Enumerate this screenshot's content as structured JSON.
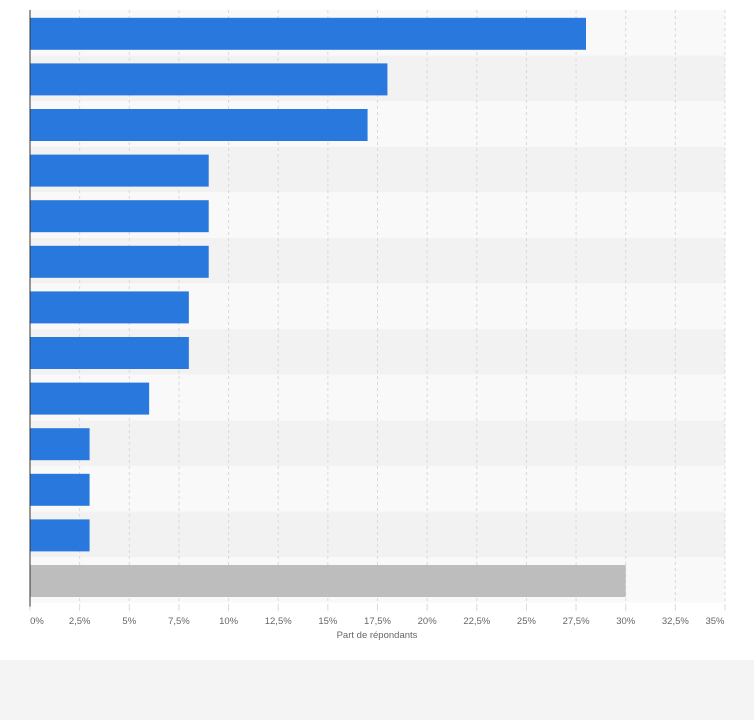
{
  "chart_data": {
    "type": "bar",
    "orientation": "horizontal",
    "categories": [
      "",
      "",
      "",
      "",
      "",
      "",
      "",
      "",
      "",
      "",
      "",
      "",
      ""
    ],
    "values": [
      28,
      18,
      17,
      9,
      9,
      9,
      8,
      8,
      6,
      3,
      3,
      3,
      30
    ],
    "highlight_last": true,
    "xlabel": "Part de répondants",
    "ylabel": "",
    "xlim": [
      0,
      35
    ],
    "x_ticks": [
      "0%",
      "2,5%",
      "5%",
      "7,5%",
      "10%",
      "12,5%",
      "15%",
      "17,5%",
      "20%",
      "22,5%",
      "25%",
      "27,5%",
      "30%",
      "32,5%",
      "35%"
    ],
    "grid": true,
    "legend": "none"
  },
  "colors": {
    "bar": "#2878de",
    "bar_highlight": "#bdbdbd",
    "band_light": "#f9f9f9",
    "band_dark": "#f2f2f2",
    "grid": "#d9d9d9",
    "axis": "#333333",
    "tick_text": "#666666"
  }
}
